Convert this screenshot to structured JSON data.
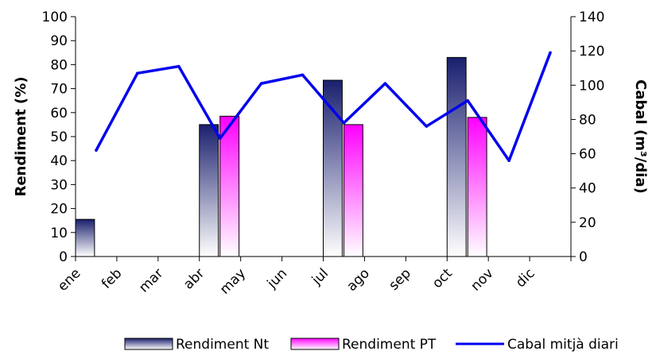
{
  "chart_data": {
    "type": "bar",
    "categories": [
      "ene",
      "feb",
      "mar",
      "abr",
      "may",
      "jun",
      "jul",
      "ago",
      "sep",
      "oct",
      "nov",
      "dic"
    ],
    "series": [
      {
        "name": "Rendiment Nt",
        "kind": "bar",
        "axis": "left",
        "values": [
          15.5,
          null,
          null,
          55,
          null,
          null,
          73.5,
          null,
          null,
          83,
          null,
          null
        ]
      },
      {
        "name": "Rendiment PT",
        "kind": "bar",
        "axis": "left",
        "values": [
          null,
          null,
          null,
          58.5,
          null,
          null,
          55,
          null,
          null,
          58,
          null,
          null
        ]
      },
      {
        "name": "Cabal mitjà diari",
        "kind": "line",
        "axis": "right",
        "values": [
          62,
          107,
          111,
          69,
          101,
          106,
          78,
          101,
          76,
          91,
          56,
          119
        ]
      }
    ],
    "ylabel": "Rendiment (%)",
    "y2label": "Cabal (m³/dia)",
    "ylim": [
      0,
      100
    ],
    "yticks": [
      0,
      10,
      20,
      30,
      40,
      50,
      60,
      70,
      80,
      90,
      100
    ],
    "y2lim": [
      0,
      140
    ],
    "y2ticks": [
      0,
      20,
      40,
      60,
      80,
      100,
      120,
      140
    ],
    "grid": false,
    "legend_position": "bottom",
    "colors": {
      "nt_dark": "#1a1f6e",
      "pt_bright": "#ff00ff",
      "line": "#0000ee",
      "bar_light": "#ffffff"
    }
  }
}
